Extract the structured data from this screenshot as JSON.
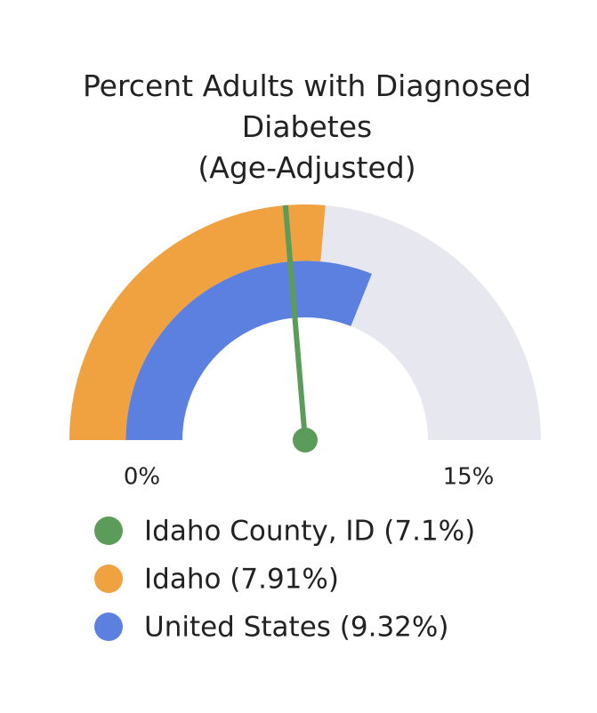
{
  "chart_data": {
    "type": "gauge",
    "title": "Percent Adults with Diagnosed Diabetes",
    "subtitle": "(Age-Adjusted)",
    "ylim": [
      0,
      15
    ],
    "yticks": [
      {
        "value": 0,
        "label": "0%"
      },
      {
        "value": 15,
        "label": "15%"
      }
    ],
    "track_color": "#e7e7f0",
    "series": [
      {
        "name": "Idaho County, ID (7.1%)",
        "color": "#5c9c5a",
        "style": "needle",
        "values": [
          7.1
        ]
      },
      {
        "name": "Idaho (7.91%)",
        "color": "#f0a240",
        "style": "band",
        "values": [
          7.91
        ]
      },
      {
        "name": "United States (9.32%)",
        "color": "#5b80e0",
        "style": "band",
        "values": [
          9.32
        ]
      }
    ]
  }
}
